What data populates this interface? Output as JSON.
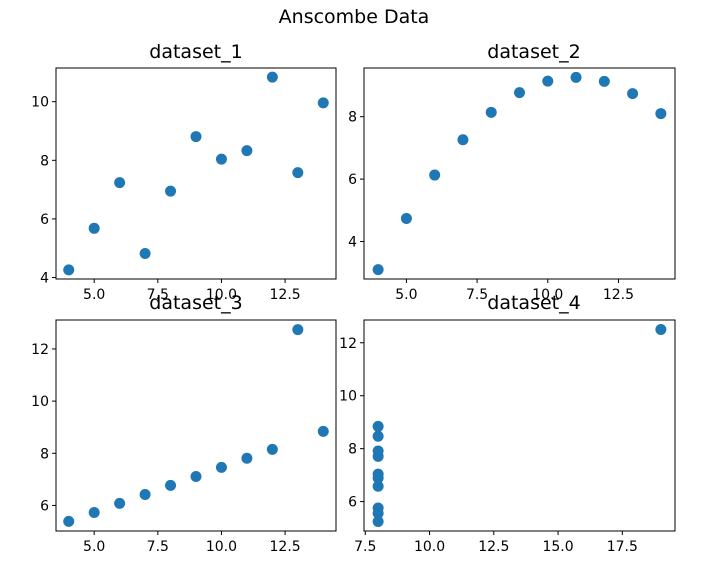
{
  "title": "Anscombe Data",
  "marker_color": "#1f77b4",
  "chart_data": [
    {
      "type": "scatter",
      "title": "dataset_1",
      "x": [
        10,
        8,
        13,
        9,
        11,
        14,
        6,
        4,
        12,
        7,
        5
      ],
      "y": [
        8.04,
        6.95,
        7.58,
        8.81,
        8.33,
        9.96,
        7.24,
        4.26,
        10.84,
        4.82,
        5.68
      ],
      "xlim": [
        3.5,
        14.5
      ],
      "ylim": [
        3.95,
        11.15
      ],
      "xticks": [
        5.0,
        7.5,
        10.0,
        12.5
      ],
      "xtick_labels": [
        "5.0",
        "7.5",
        "10.0",
        "12.5"
      ],
      "yticks": [
        4,
        6,
        8,
        10
      ],
      "ytick_labels": [
        "4",
        "6",
        "8",
        "10"
      ]
    },
    {
      "type": "scatter",
      "title": "dataset_2",
      "x": [
        10,
        8,
        13,
        9,
        11,
        14,
        6,
        4,
        12,
        7,
        5
      ],
      "y": [
        9.14,
        8.14,
        8.74,
        8.77,
        9.26,
        8.1,
        6.13,
        3.1,
        9.13,
        7.26,
        4.74
      ],
      "xlim": [
        3.5,
        14.5
      ],
      "ylim": [
        2.8,
        9.56
      ],
      "xticks": [
        5.0,
        7.5,
        10.0,
        12.5
      ],
      "xtick_labels": [
        "5.0",
        "7.5",
        "10.0",
        "12.5"
      ],
      "yticks": [
        4,
        6,
        8
      ],
      "ytick_labels": [
        "4",
        "6",
        "8"
      ]
    },
    {
      "type": "scatter",
      "title": "dataset_3",
      "x": [
        10,
        8,
        13,
        9,
        11,
        14,
        6,
        4,
        12,
        7,
        5
      ],
      "y": [
        7.46,
        6.77,
        12.74,
        7.11,
        7.81,
        8.84,
        6.08,
        5.39,
        8.15,
        6.42,
        5.73
      ],
      "xlim": [
        3.5,
        14.5
      ],
      "ylim": [
        5.02,
        13.11
      ],
      "xticks": [
        5.0,
        7.5,
        10.0,
        12.5
      ],
      "xtick_labels": [
        "5.0",
        "7.5",
        "10.0",
        "12.5"
      ],
      "yticks": [
        6,
        8,
        10,
        12
      ],
      "ytick_labels": [
        "6",
        "8",
        "10",
        "12"
      ]
    },
    {
      "type": "scatter",
      "title": "dataset_4",
      "x": [
        8,
        8,
        8,
        8,
        8,
        8,
        8,
        19,
        8,
        8,
        8
      ],
      "y": [
        6.58,
        5.76,
        7.71,
        8.84,
        8.47,
        7.04,
        5.25,
        12.5,
        5.56,
        7.91,
        6.89
      ],
      "xlim": [
        7.45,
        19.55
      ],
      "ylim": [
        4.89,
        12.86
      ],
      "xticks": [
        7.5,
        10.0,
        12.5,
        15.0,
        17.5
      ],
      "xtick_labels": [
        "7.5",
        "10.0",
        "12.5",
        "15.0",
        "17.5"
      ],
      "yticks": [
        6,
        8,
        10,
        12
      ],
      "ytick_labels": [
        "6",
        "8",
        "10",
        "12"
      ]
    }
  ]
}
